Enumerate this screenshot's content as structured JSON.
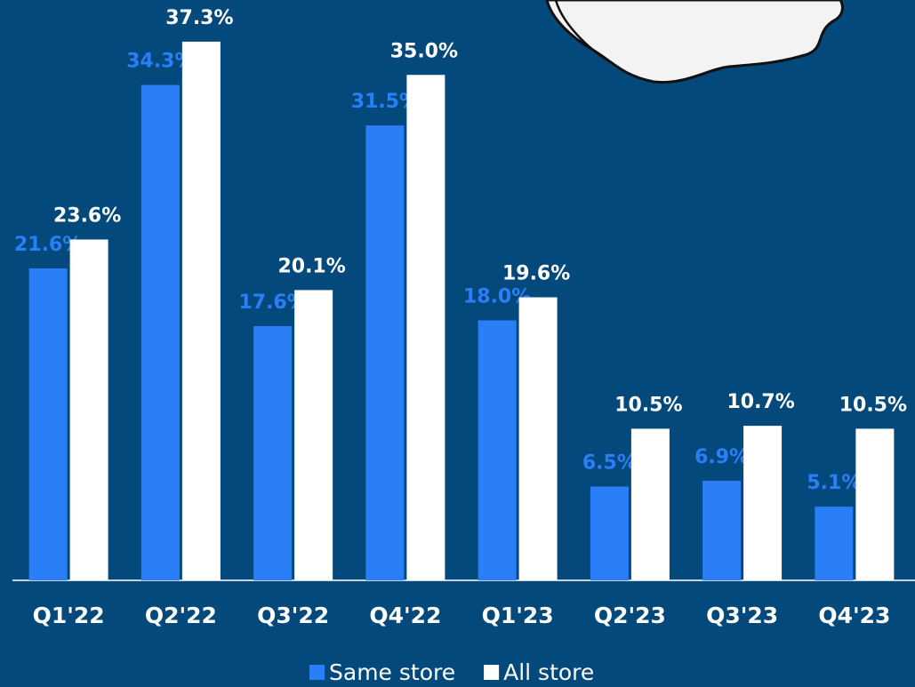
{
  "chart_data": {
    "type": "bar",
    "categories": [
      "Q1'22",
      "Q2'22",
      "Q3'22",
      "Q4'22",
      "Q1'23",
      "Q2'23",
      "Q3'23",
      "Q4'23"
    ],
    "series": [
      {
        "name": "Same store",
        "color": "#2a7ef8",
        "values": [
          21.6,
          34.3,
          17.6,
          31.5,
          18.0,
          6.5,
          6.9,
          5.1
        ],
        "value_labels": [
          "21.6%",
          "34.3%",
          "17.6%",
          "31.5%",
          "18.0%",
          "6.5%",
          "6.9%",
          "5.1%"
        ]
      },
      {
        "name": "All store",
        "color": "#ffffff",
        "values": [
          23.6,
          37.3,
          20.1,
          35.0,
          19.6,
          10.5,
          10.7,
          10.5
        ],
        "value_labels": [
          "23.6%",
          "37.3%",
          "20.1%",
          "35.0%",
          "19.6%",
          "10.5%",
          "10.7%",
          "10.5%"
        ]
      }
    ],
    "ylim": [
      0,
      40
    ]
  }
}
